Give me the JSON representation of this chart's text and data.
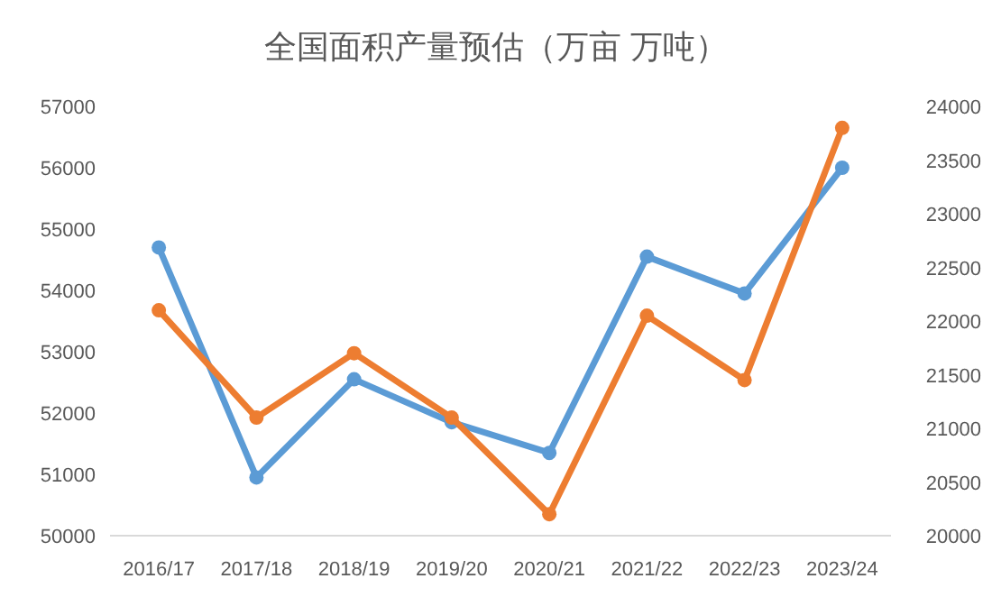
{
  "chart_data": {
    "type": "line",
    "title": "全国面积产量预估（万亩 万吨）",
    "categories": [
      "2016/17",
      "2017/18",
      "2018/19",
      "2019/20",
      "2020/21",
      "2021/22",
      "2022/23",
      "2023/24"
    ],
    "series": [
      {
        "color": "#5b9bd5",
        "values": [
          54700,
          50950,
          52550,
          51850,
          51350,
          54550,
          53950,
          56000
        ]
      },
      {
        "color": "#ed7d31",
        "axis": "y2",
        "values": [
          22100,
          21100,
          21700,
          21100,
          20200,
          22050,
          21450,
          23800
        ]
      }
    ],
    "ylim": [
      50000,
      57000
    ],
    "yticks": [
      50000,
      51000,
      52000,
      53000,
      54000,
      55000,
      56000,
      57000
    ],
    "y2lim": [
      20000,
      24000
    ],
    "y2ticks": [
      20000,
      20500,
      21000,
      21500,
      22000,
      22500,
      23000,
      23500,
      24000
    ],
    "marker": "circle",
    "line_style": "solid",
    "grid": false
  }
}
